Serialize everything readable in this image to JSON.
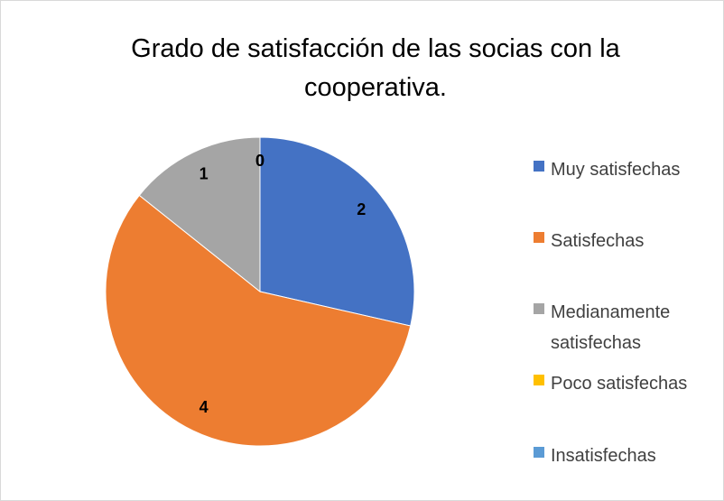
{
  "chart_data": {
    "type": "pie",
    "title": "Grado de satisfacción de las socias con la cooperativa.",
    "categories": [
      "Muy satisfechas",
      "Satisfechas",
      "Medianamente satisfechas",
      "Poco satisfechas",
      "Insatisfechas"
    ],
    "values": [
      2,
      4,
      1,
      0,
      0
    ],
    "colors": [
      "#4472c4",
      "#ed7d31",
      "#a5a5a5",
      "#ffc000",
      "#5b9bd5"
    ],
    "legend": "right"
  }
}
